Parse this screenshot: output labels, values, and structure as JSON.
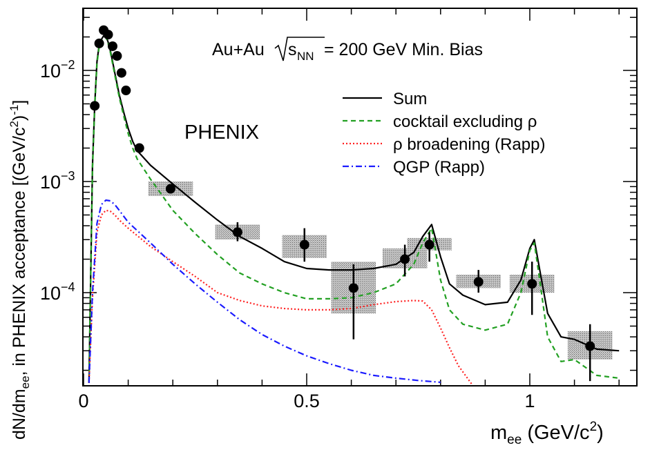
{
  "chart_data": {
    "type": "line",
    "title": "",
    "annotation_main": "Au+Au",
    "annotation_sqrt": "s",
    "annotation_sqrt_sub": "NN",
    "annotation_rest": "= 200 GeV Min. Bias",
    "experiment_label": "PHENIX",
    "xlabel": "m",
    "xlabel_sub": "ee",
    "xlabel_unit": "(GeV/c",
    "xlabel_unit_sup": "2",
    "xlabel_unit_close": ")",
    "ylabel_pre": "dN/dm",
    "ylabel_sub": "ee",
    "ylabel_mid": ", in PHENIX acceptance [(GeV/c",
    "ylabel_sup1": "2",
    "ylabel_close": ")",
    "ylabel_sup2": "-1",
    "ylabel_end": "]",
    "xlim": [
      0,
      1.2
    ],
    "ylim": [
      1.5e-05,
      0.03
    ],
    "yscale": "log",
    "x_ticks": [
      {
        "value": 0,
        "label": "0"
      },
      {
        "value": 0.5,
        "label": "0.5"
      },
      {
        "value": 1,
        "label": "1"
      }
    ],
    "y_ticks": [
      {
        "value": 0.01,
        "base": "10",
        "exp": "−2"
      },
      {
        "value": 0.001,
        "base": "10",
        "exp": "−3"
      },
      {
        "value": 0.0001,
        "base": "10",
        "exp": "−4"
      }
    ],
    "legend": [
      {
        "label": "Sum",
        "color": "#000000",
        "style": "solid"
      },
      {
        "label": "cocktail excluding ρ",
        "color": "#22a022",
        "style": "dashed"
      },
      {
        "label": "ρ broadening (Rapp)",
        "color": "#ff2020",
        "style": "dotted"
      },
      {
        "label": "QGP (Rapp)",
        "color": "#1a1aff",
        "style": "dashdot"
      }
    ],
    "series": [
      {
        "name": "Sum",
        "color": "#000000",
        "style": "solid",
        "x": [
          0.012,
          0.02,
          0.025,
          0.03,
          0.035,
          0.04,
          0.045,
          0.05,
          0.055,
          0.06,
          0.065,
          0.07,
          0.08,
          0.09,
          0.1,
          0.11,
          0.12,
          0.15,
          0.2,
          0.25,
          0.3,
          0.35,
          0.4,
          0.45,
          0.5,
          0.55,
          0.6,
          0.65,
          0.7,
          0.74,
          0.76,
          0.78,
          0.8,
          0.82,
          0.85,
          0.9,
          0.95,
          0.98,
          1.0,
          1.01,
          1.02,
          1.04,
          1.07,
          1.1,
          1.15,
          1.2
        ],
        "y": [
          1.54e-05,
          0.0014,
          0.005,
          0.012,
          0.017,
          0.019,
          0.0205,
          0.0205,
          0.018,
          0.015,
          0.012,
          0.0095,
          0.006,
          0.0042,
          0.003,
          0.0023,
          0.0019,
          0.0014,
          0.00095,
          0.00065,
          0.00045,
          0.00032,
          0.00025,
          0.00019,
          0.000165,
          0.00016,
          0.00016,
          0.000165,
          0.00018,
          0.00023,
          0.00032,
          0.00041,
          0.00021,
          0.00012,
          9.5e-05,
          7.8e-05,
          8.2e-05,
          0.00013,
          0.00025,
          0.0003,
          0.00018,
          6.5e-05,
          4e-05,
          3.8e-05,
          3.1e-05,
          3e-05
        ]
      },
      {
        "name": "cocktail excluding ρ",
        "color": "#22a022",
        "style": "dashed",
        "x": [
          0.012,
          0.02,
          0.025,
          0.03,
          0.035,
          0.04,
          0.045,
          0.05,
          0.055,
          0.06,
          0.065,
          0.07,
          0.08,
          0.09,
          0.1,
          0.11,
          0.12,
          0.15,
          0.2,
          0.25,
          0.3,
          0.35,
          0.4,
          0.45,
          0.5,
          0.55,
          0.6,
          0.65,
          0.7,
          0.74,
          0.76,
          0.78,
          0.8,
          0.82,
          0.85,
          0.9,
          0.95,
          0.98,
          1.0,
          1.01,
          1.02,
          1.04,
          1.07,
          1.1,
          1.15,
          1.2
        ],
        "y": [
          1.54e-05,
          0.0013,
          0.0048,
          0.0115,
          0.0165,
          0.0185,
          0.02,
          0.02,
          0.0175,
          0.0145,
          0.0115,
          0.0091,
          0.0057,
          0.0039,
          0.0027,
          0.002,
          0.0016,
          0.00105,
          0.00055,
          0.00034,
          0.00022,
          0.00015,
          0.00012,
          0.0001,
          8.8e-05,
          8.8e-05,
          9e-05,
          0.0001,
          0.00012,
          0.00018,
          0.00028,
          0.00038,
          0.00013,
          7e-05,
          5.2e-05,
          4.6e-05,
          5.2e-05,
          0.0001,
          0.00024,
          0.00028,
          0.00015,
          4e-05,
          2.4e-05,
          2.5e-05,
          1.8e-05,
          1.7e-05
        ]
      },
      {
        "name": "ρ broadening (Rapp)",
        "color": "#ff2020",
        "style": "dotted",
        "x": [
          0.012,
          0.02,
          0.03,
          0.04,
          0.05,
          0.06,
          0.07,
          0.08,
          0.1,
          0.15,
          0.2,
          0.25,
          0.3,
          0.35,
          0.4,
          0.45,
          0.5,
          0.55,
          0.6,
          0.65,
          0.7,
          0.74,
          0.76,
          0.78,
          0.8,
          0.82,
          0.84,
          0.87
        ],
        "y": [
          1.54e-05,
          9e-05,
          0.00035,
          0.0005,
          0.00055,
          0.00054,
          0.0005,
          0.00045,
          0.00038,
          0.00026,
          0.00019,
          0.00014,
          0.0001,
          8.5e-05,
          7.6e-05,
          7.2e-05,
          7e-05,
          7e-05,
          7.2e-05,
          7.8e-05,
          8.3e-05,
          8.5e-05,
          8.4e-05,
          7e-05,
          4.8e-05,
          3.2e-05,
          2.2e-05,
          1.5e-05
        ]
      },
      {
        "name": "QGP (Rapp)",
        "color": "#1a1aff",
        "style": "dashdot",
        "x": [
          0.012,
          0.02,
          0.03,
          0.04,
          0.05,
          0.06,
          0.07,
          0.08,
          0.1,
          0.15,
          0.2,
          0.25,
          0.3,
          0.35,
          0.4,
          0.45,
          0.5,
          0.55,
          0.6,
          0.65,
          0.7,
          0.75,
          0.8
        ],
        "y": [
          1.54e-05,
          0.0001,
          0.00042,
          0.00062,
          0.00068,
          0.00067,
          0.00062,
          0.00055,
          0.00043,
          0.00028,
          0.00018,
          0.00012,
          8.2e-05,
          5.7e-05,
          4.2e-05,
          3.3e-05,
          2.7e-05,
          2.3e-05,
          2e-05,
          1.8e-05,
          1.7e-05,
          1.62e-05,
          1.56e-05
        ]
      }
    ],
    "data_points": [
      {
        "x": 0.025,
        "y": 0.0048
      },
      {
        "x": 0.035,
        "y": 0.0175
      },
      {
        "x": 0.045,
        "y": 0.023
      },
      {
        "x": 0.055,
        "y": 0.021
      },
      {
        "x": 0.065,
        "y": 0.0165
      },
      {
        "x": 0.075,
        "y": 0.0135
      },
      {
        "x": 0.085,
        "y": 0.0095
      },
      {
        "x": 0.095,
        "y": 0.0066
      },
      {
        "x": 0.125,
        "y": 0.002
      },
      {
        "x": 0.195,
        "y": 0.00086
      },
      {
        "x": 0.345,
        "y": 0.00035,
        "err_lo": 0.00029,
        "err_hi": 0.00043
      },
      {
        "x": 0.495,
        "y": 0.00027,
        "err_lo": 0.00019,
        "err_hi": 0.00038
      },
      {
        "x": 0.605,
        "y": 0.00011,
        "err_lo": 3.8e-05,
        "err_hi": 0.00018
      },
      {
        "x": 0.72,
        "y": 0.0002,
        "err_lo": 0.00014,
        "err_hi": 0.00027
      },
      {
        "x": 0.775,
        "y": 0.00027,
        "err_lo": 0.00019,
        "err_hi": 0.00035
      },
      {
        "x": 0.885,
        "y": 0.000125,
        "err_lo": 0.0001,
        "err_hi": 0.00016
      },
      {
        "x": 1.005,
        "y": 0.00012,
        "err_lo": 6.3e-05,
        "err_hi": 0.00019
      },
      {
        "x": 1.135,
        "y": 3.3e-05,
        "err_lo": 1.6e-05,
        "err_hi": 5.2e-05
      }
    ],
    "sys_boxes": [
      {
        "x0": 0.145,
        "x1": 0.245,
        "y0": 0.00074,
        "y1": 0.001
      },
      {
        "x0": 0.295,
        "x1": 0.395,
        "y0": 0.0003,
        "y1": 0.00041
      },
      {
        "x0": 0.445,
        "x1": 0.545,
        "y0": 0.000205,
        "y1": 0.00033
      },
      {
        "x0": 0.555,
        "x1": 0.655,
        "y0": 6.5e-05,
        "y1": 0.00019
      },
      {
        "x0": 0.67,
        "x1": 0.77,
        "y0": 0.000165,
        "y1": 0.00025
      },
      {
        "x0": 0.725,
        "x1": 0.825,
        "y0": 0.00024,
        "y1": 0.00031
      },
      {
        "x0": 0.835,
        "x1": 0.935,
        "y0": 0.00011,
        "y1": 0.000145
      },
      {
        "x0": 0.955,
        "x1": 1.055,
        "y0": 0.0001,
        "y1": 0.000145
      },
      {
        "x0": 1.085,
        "x1": 1.185,
        "y0": 2.5e-05,
        "y1": 4.5e-05
      }
    ],
    "colors": {
      "sum": "#000000",
      "cocktail": "#22a022",
      "rho": "#ff2020",
      "qgp": "#1a1aff",
      "points": "#000000",
      "sys_box": "#9a9a9a"
    }
  }
}
